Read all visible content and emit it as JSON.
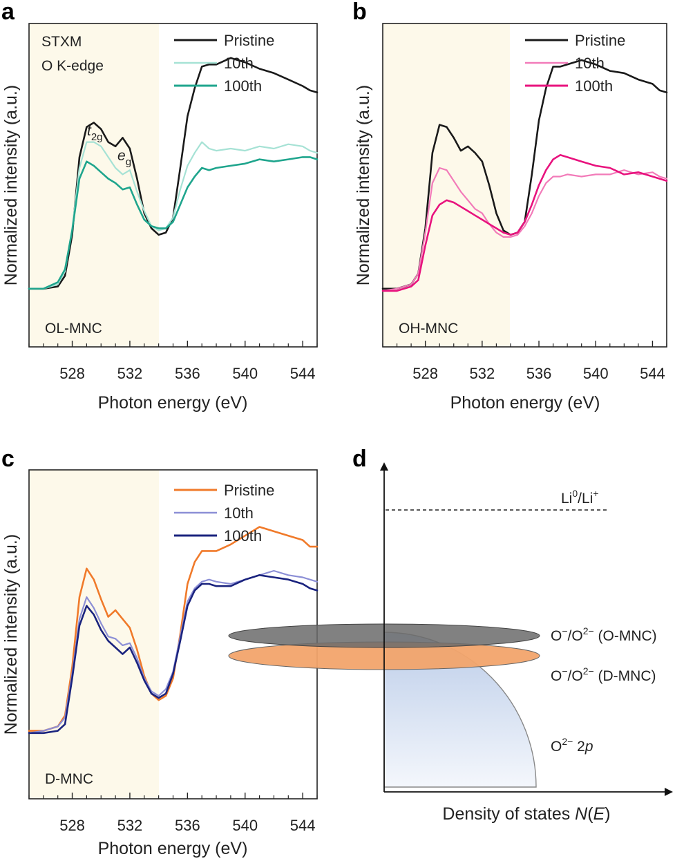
{
  "panels": {
    "a": {
      "letter": "a",
      "sample_label": "OL-MNC",
      "technique_line1": "STXM",
      "technique_line2": "O K-edge",
      "peak_t": "t",
      "peak_t_sub": "2g",
      "peak_e": "e",
      "peak_e_sub": "g"
    },
    "b": {
      "letter": "b",
      "sample_label": "OH-MNC"
    },
    "c": {
      "letter": "c",
      "sample_label": "D-MNC"
    },
    "d": {
      "letter": "d"
    }
  },
  "chart_data": [
    {
      "id": "a",
      "type": "line",
      "title": "",
      "xlabel": "Photon energy (eV)",
      "ylabel": "Normalized intensity (a.u.)",
      "xlim": [
        525,
        545
      ],
      "ylim": [
        0,
        1.5
      ],
      "xticks": [
        528,
        532,
        536,
        540,
        544
      ],
      "tick_labels": [
        "528",
        "532",
        "536",
        "540",
        "544"
      ],
      "highlight_region": [
        525,
        534
      ],
      "highlight_color": "#fdf9ea",
      "series": [
        {
          "name": "Pristine",
          "color": "#1a1a1a",
          "width": 2.6,
          "x": [
            525,
            526,
            527,
            527.5,
            528,
            528.5,
            529,
            529.5,
            530,
            530.5,
            531,
            531.5,
            532,
            532.5,
            533,
            533.5,
            534,
            534.5,
            535,
            535.5,
            536,
            536.5,
            537,
            537.5,
            538,
            539,
            540,
            541,
            542,
            543,
            544,
            544.5,
            545
          ],
          "y": [
            0.27,
            0.27,
            0.28,
            0.33,
            0.52,
            0.88,
            1.02,
            1.04,
            1.01,
            0.95,
            0.93,
            0.97,
            0.92,
            0.78,
            0.62,
            0.55,
            0.52,
            0.53,
            0.6,
            0.83,
            1.07,
            1.2,
            1.3,
            1.31,
            1.31,
            1.34,
            1.32,
            1.29,
            1.27,
            1.24,
            1.21,
            1.19,
            1.18
          ]
        },
        {
          "name": "10th",
          "color": "#a6e2d5",
          "width": 2.2,
          "x": [
            525,
            526,
            527,
            527.5,
            528,
            528.5,
            529,
            529.5,
            530,
            530.5,
            531,
            531.5,
            532,
            532.5,
            533,
            533.5,
            534,
            534.5,
            535,
            535.5,
            536,
            536.5,
            537,
            537.5,
            538,
            539,
            540,
            541,
            542,
            543,
            544,
            544.5,
            545
          ],
          "y": [
            0.27,
            0.27,
            0.29,
            0.35,
            0.55,
            0.83,
            0.95,
            0.95,
            0.93,
            0.88,
            0.83,
            0.8,
            0.82,
            0.72,
            0.63,
            0.56,
            0.54,
            0.55,
            0.6,
            0.73,
            0.84,
            0.9,
            0.95,
            0.92,
            0.91,
            0.92,
            0.91,
            0.93,
            0.92,
            0.94,
            0.93,
            0.91,
            0.9
          ]
        },
        {
          "name": "100th",
          "color": "#1fa58d",
          "width": 2.6,
          "x": [
            525,
            526,
            527,
            527.5,
            528,
            528.5,
            529,
            529.5,
            530,
            530.5,
            531,
            531.5,
            532,
            532.5,
            533,
            533.5,
            534,
            534.5,
            535,
            535.5,
            536,
            536.5,
            537,
            537.5,
            538,
            539,
            540,
            541,
            542,
            543,
            544,
            544.5,
            545
          ],
          "y": [
            0.27,
            0.27,
            0.3,
            0.36,
            0.54,
            0.78,
            0.86,
            0.84,
            0.81,
            0.78,
            0.76,
            0.73,
            0.74,
            0.66,
            0.59,
            0.56,
            0.55,
            0.55,
            0.58,
            0.66,
            0.74,
            0.79,
            0.83,
            0.82,
            0.83,
            0.84,
            0.85,
            0.87,
            0.86,
            0.87,
            0.88,
            0.88,
            0.87
          ]
        }
      ]
    },
    {
      "id": "b",
      "type": "line",
      "title": "",
      "xlabel": "Photon energy (eV)",
      "ylabel": "Normalized intensity (a.u.)",
      "xlim": [
        525,
        545
      ],
      "ylim": [
        0,
        1.5
      ],
      "xticks": [
        528,
        532,
        536,
        540,
        544
      ],
      "tick_labels": [
        "528",
        "532",
        "536",
        "540",
        "544"
      ],
      "highlight_region": [
        525,
        534
      ],
      "highlight_color": "#fdf9ea",
      "series": [
        {
          "name": "Pristine",
          "color": "#1a1a1a",
          "width": 2.6,
          "x": [
            525,
            526,
            527,
            527.5,
            528,
            528.5,
            529,
            529.5,
            530,
            530.5,
            531,
            531.5,
            532,
            532.5,
            533,
            533.5,
            534,
            534.5,
            535,
            535.5,
            536,
            536.5,
            537,
            537.5,
            538,
            539,
            540,
            541,
            542,
            543,
            544,
            544.5,
            545
          ],
          "y": [
            0.27,
            0.27,
            0.29,
            0.34,
            0.55,
            0.9,
            1.03,
            1.02,
            0.97,
            0.91,
            0.93,
            0.9,
            0.86,
            0.75,
            0.62,
            0.54,
            0.52,
            0.53,
            0.58,
            0.8,
            1.05,
            1.2,
            1.3,
            1.3,
            1.31,
            1.33,
            1.31,
            1.28,
            1.27,
            1.24,
            1.22,
            1.19,
            1.18
          ]
        },
        {
          "name": "10th",
          "color": "#f27bb9",
          "width": 2.2,
          "x": [
            525,
            526,
            527,
            527.5,
            528,
            528.5,
            529,
            529.5,
            530,
            530.5,
            531,
            531.5,
            532,
            532.5,
            533,
            533.5,
            534,
            534.5,
            535,
            535.5,
            536,
            536.5,
            537,
            537.5,
            538,
            539,
            540,
            541,
            542,
            543,
            544,
            544.5,
            545
          ],
          "y": [
            0.26,
            0.27,
            0.29,
            0.34,
            0.53,
            0.76,
            0.83,
            0.82,
            0.77,
            0.72,
            0.68,
            0.64,
            0.62,
            0.57,
            0.53,
            0.51,
            0.51,
            0.52,
            0.56,
            0.62,
            0.7,
            0.76,
            0.79,
            0.79,
            0.8,
            0.79,
            0.8,
            0.8,
            0.82,
            0.8,
            0.81,
            0.79,
            0.78
          ]
        },
        {
          "name": "100th",
          "color": "#e8137e",
          "width": 2.6,
          "x": [
            525,
            526,
            527,
            527.5,
            528,
            528.5,
            529,
            529.5,
            530,
            530.5,
            531,
            531.5,
            532,
            532.5,
            533,
            533.5,
            534,
            534.5,
            535,
            535.5,
            536,
            536.5,
            537,
            537.5,
            538,
            539,
            540,
            541,
            542,
            543,
            544,
            544.5,
            545
          ],
          "y": [
            0.26,
            0.26,
            0.28,
            0.31,
            0.47,
            0.61,
            0.66,
            0.68,
            0.67,
            0.65,
            0.63,
            0.61,
            0.59,
            0.57,
            0.55,
            0.53,
            0.52,
            0.53,
            0.58,
            0.66,
            0.75,
            0.82,
            0.87,
            0.89,
            0.88,
            0.86,
            0.84,
            0.83,
            0.8,
            0.81,
            0.79,
            0.78,
            0.77
          ]
        }
      ]
    },
    {
      "id": "c",
      "type": "line",
      "title": "",
      "xlabel": "Photon energy (eV)",
      "ylabel": "Normalized intensity (a.u.)",
      "xlim": [
        525,
        545
      ],
      "ylim": [
        0,
        1.5
      ],
      "xticks": [
        528,
        532,
        536,
        540,
        544
      ],
      "tick_labels": [
        "528",
        "532",
        "536",
        "540",
        "544"
      ],
      "highlight_region": [
        525,
        534
      ],
      "highlight_color": "#fdf9ea",
      "series": [
        {
          "name": "Pristine",
          "color": "#f07a2a",
          "width": 2.6,
          "x": [
            525,
            526,
            527,
            527.5,
            528,
            528.5,
            529,
            529.5,
            530,
            530.5,
            531,
            531.5,
            532,
            532.5,
            533,
            533.5,
            534,
            534.5,
            535,
            535.5,
            536,
            536.5,
            537,
            537.5,
            538,
            539,
            540,
            541,
            542,
            543,
            544,
            544.5,
            545
          ],
          "y": [
            0.31,
            0.31,
            0.33,
            0.38,
            0.6,
            0.92,
            1.05,
            1.0,
            0.91,
            0.83,
            0.86,
            0.82,
            0.78,
            0.68,
            0.56,
            0.48,
            0.45,
            0.47,
            0.55,
            0.75,
            0.98,
            1.08,
            1.13,
            1.13,
            1.13,
            1.16,
            1.2,
            1.24,
            1.22,
            1.2,
            1.18,
            1.15,
            1.15
          ]
        },
        {
          "name": "10th",
          "color": "#8c8fd6",
          "width": 2.2,
          "x": [
            525,
            526,
            527,
            527.5,
            528,
            528.5,
            529,
            529.5,
            530,
            530.5,
            531,
            531.5,
            532,
            532.5,
            533,
            533.5,
            534,
            534.5,
            535,
            535.5,
            536,
            536.5,
            537,
            537.5,
            538,
            539,
            540,
            541,
            542,
            543,
            544,
            544.5,
            545
          ],
          "y": [
            0.3,
            0.31,
            0.33,
            0.37,
            0.57,
            0.82,
            0.92,
            0.87,
            0.8,
            0.74,
            0.73,
            0.7,
            0.71,
            0.64,
            0.55,
            0.49,
            0.47,
            0.5,
            0.58,
            0.74,
            0.9,
            0.96,
            0.99,
            1.0,
            0.99,
            0.98,
            1.0,
            1.02,
            1.04,
            1.02,
            1.01,
            1.0,
            0.99
          ]
        },
        {
          "name": "100th",
          "color": "#1a237e",
          "width": 2.6,
          "x": [
            525,
            526,
            527,
            527.5,
            528,
            528.5,
            529,
            529.5,
            530,
            530.5,
            531,
            531.5,
            532,
            532.5,
            533,
            533.5,
            534,
            534.5,
            535,
            535.5,
            536,
            536.5,
            537,
            537.5,
            538,
            539,
            540,
            541,
            542,
            543,
            544,
            544.5,
            545
          ],
          "y": [
            0.3,
            0.3,
            0.31,
            0.34,
            0.55,
            0.79,
            0.88,
            0.84,
            0.77,
            0.72,
            0.69,
            0.66,
            0.69,
            0.62,
            0.54,
            0.48,
            0.46,
            0.48,
            0.57,
            0.72,
            0.88,
            0.95,
            0.98,
            0.98,
            0.97,
            0.97,
            1.0,
            1.02,
            1.01,
            1.0,
            0.98,
            0.96,
            0.95
          ]
        }
      ]
    },
    {
      "id": "d",
      "type": "diagram",
      "xlabel": "Density of states N(E)",
      "xlabel_prefix": "Density of states ",
      "xlabel_N": "N",
      "xlabel_E": "E",
      "reference_level": {
        "label_base": "Li",
        "label_sup1": "0",
        "label_mid": "/Li",
        "label_sup2": "+",
        "line_style": "dashed"
      },
      "bands": [
        {
          "name": "O-MNC",
          "label_base": "O",
          "label_sup1": "−",
          "label_mid": "/O",
          "label_sup2": "2−",
          "label_tail": " (O-MNC)",
          "color": "#6b6b6b"
        },
        {
          "name": "D-MNC",
          "label_base": "O",
          "label_sup1": "−",
          "label_mid": "/O",
          "label_sup2": "2−",
          "label_tail": " (D-MNC)",
          "color": "#f2a46b"
        },
        {
          "name": "O 2p",
          "label_base": "O",
          "label_sup": "2−",
          "label_tail": " 2",
          "label_italic": "p",
          "color": "#c7d6ee"
        }
      ]
    }
  ]
}
